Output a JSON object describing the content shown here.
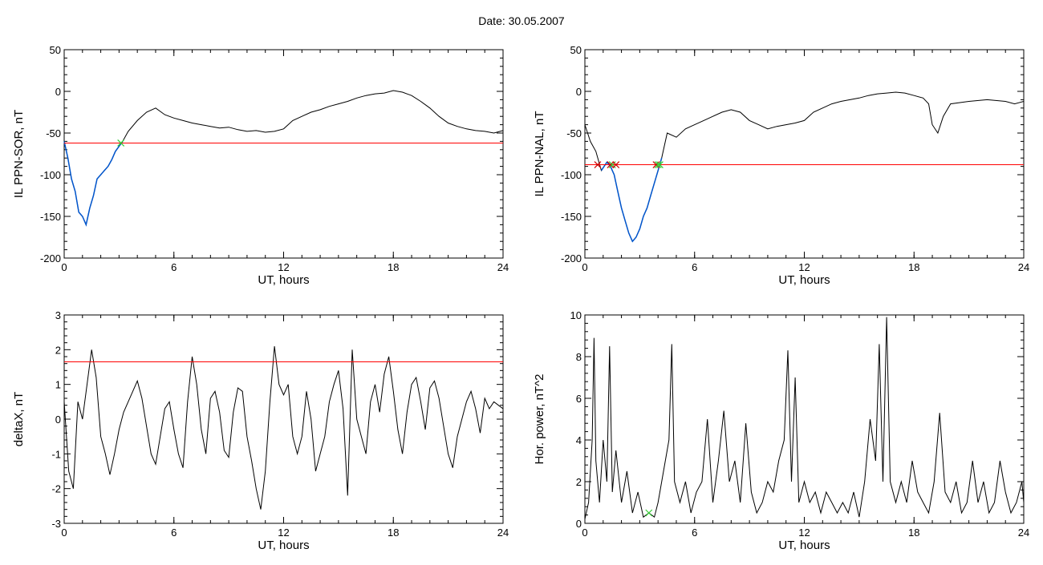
{
  "figure": {
    "title": "Date:  30.05.2007"
  },
  "colors": {
    "threshold": "#ff0000",
    "trace": "#000000",
    "highlight": "#0055cc",
    "marker_red": "#cc0000",
    "marker_green": "#33cc33"
  },
  "chart_data": [
    {
      "id": "sor",
      "type": "line",
      "xlabel": "UT, hours",
      "ylabel": "IL PPN-SOR, nT",
      "xlim": [
        0,
        24
      ],
      "ylim": [
        -200,
        50
      ],
      "xticks": [
        "0",
        "6",
        "12",
        "18",
        "24"
      ],
      "yticks": [
        "-200",
        "-150",
        "-100",
        "-50",
        "0",
        "50"
      ],
      "threshold": -62,
      "highlight_range": [
        0,
        3.2
      ],
      "markers": [
        {
          "x": 3.1,
          "y": -62,
          "color": "green"
        }
      ],
      "series": [
        {
          "x": [
            0,
            0.2,
            0.4,
            0.6,
            0.8,
            1.0,
            1.2,
            1.4,
            1.6,
            1.8,
            2.0,
            2.2,
            2.4,
            2.6,
            2.8,
            3.0,
            3.2,
            3.5,
            4.0,
            4.5,
            5.0,
            5.5,
            6.0,
            6.5,
            7.0,
            7.5,
            8.0,
            8.5,
            9.0,
            9.5,
            10.0,
            10.5,
            11.0,
            11.5,
            12.0,
            12.5,
            13.0,
            13.5,
            14.0,
            14.5,
            15.0,
            15.5,
            16.0,
            16.5,
            17.0,
            17.5,
            18.0,
            18.5,
            19.0,
            19.5,
            20.0,
            20.5,
            21.0,
            21.5,
            22.0,
            22.5,
            23.0,
            23.5,
            24.0
          ],
          "y": [
            -60,
            -80,
            -105,
            -120,
            -145,
            -150,
            -160,
            -140,
            -125,
            -105,
            -100,
            -95,
            -90,
            -82,
            -72,
            -66,
            -60,
            -48,
            -35,
            -25,
            -20,
            -28,
            -32,
            -35,
            -38,
            -40,
            -42,
            -44,
            -43,
            -46,
            -48,
            -47,
            -49,
            -48,
            -45,
            -35,
            -30,
            -25,
            -22,
            -18,
            -15,
            -12,
            -8,
            -5,
            -3,
            -2,
            1,
            -1,
            -5,
            -12,
            -20,
            -30,
            -38,
            -42,
            -45,
            -47,
            -48,
            -50,
            -47
          ]
        }
      ]
    },
    {
      "id": "nal",
      "type": "line",
      "xlabel": "UT, hours",
      "ylabel": "IL PPN-NAL, nT",
      "xlim": [
        0,
        24
      ],
      "ylim": [
        -200,
        50
      ],
      "xticks": [
        "0",
        "6",
        "12",
        "18",
        "24"
      ],
      "yticks": [
        "-200",
        "-150",
        "-100",
        "-50",
        "0",
        "50"
      ],
      "threshold": -88,
      "highlight_range": [
        0.7,
        4.2
      ],
      "markers": [
        {
          "x": 0.7,
          "y": -88,
          "color": "red"
        },
        {
          "x": 1.4,
          "y": -88,
          "color": "red"
        },
        {
          "x": 1.5,
          "y": -88,
          "color": "green"
        },
        {
          "x": 1.7,
          "y": -88,
          "color": "red"
        },
        {
          "x": 3.9,
          "y": -88,
          "color": "red"
        },
        {
          "x": 4.0,
          "y": -88,
          "color": "green"
        },
        {
          "x": 4.1,
          "y": -88,
          "color": "green"
        }
      ],
      "series": [
        {
          "x": [
            0,
            0.3,
            0.6,
            0.9,
            1.2,
            1.4,
            1.6,
            1.8,
            2.0,
            2.2,
            2.4,
            2.6,
            2.8,
            3.0,
            3.2,
            3.4,
            3.6,
            3.8,
            4.0,
            4.2,
            4.5,
            5.0,
            5.5,
            6.0,
            6.5,
            7.0,
            7.5,
            8.0,
            8.5,
            9.0,
            9.5,
            10.0,
            10.5,
            11.0,
            11.5,
            12.0,
            12.5,
            13.0,
            13.5,
            14.0,
            14.5,
            15.0,
            15.5,
            16.0,
            16.5,
            17.0,
            17.5,
            18.0,
            18.5,
            18.8,
            19.0,
            19.3,
            19.6,
            20.0,
            21.0,
            22.0,
            23.0,
            23.5,
            24.0
          ],
          "y": [
            -40,
            -60,
            -72,
            -95,
            -85,
            -90,
            -100,
            -120,
            -140,
            -155,
            -170,
            -180,
            -175,
            -165,
            -150,
            -140,
            -125,
            -110,
            -95,
            -80,
            -50,
            -55,
            -45,
            -40,
            -35,
            -30,
            -25,
            -22,
            -25,
            -35,
            -40,
            -45,
            -42,
            -40,
            -38,
            -35,
            -25,
            -20,
            -15,
            -12,
            -10,
            -8,
            -5,
            -3,
            -2,
            -1,
            -2,
            -5,
            -8,
            -15,
            -40,
            -50,
            -30,
            -15,
            -12,
            -10,
            -12,
            -15,
            -12
          ]
        }
      ]
    },
    {
      "id": "deltax",
      "type": "line",
      "xlabel": "UT, hours",
      "ylabel": "deltaX, nT",
      "xlim": [
        0,
        24
      ],
      "ylim": [
        -3,
        3
      ],
      "xticks": [
        "0",
        "6",
        "12",
        "18",
        "24"
      ],
      "yticks": [
        "-3",
        "-2",
        "-1",
        "0",
        "1",
        "2",
        "3"
      ],
      "threshold": 1.65,
      "series": [
        {
          "x": [
            0,
            0.25,
            0.5,
            0.75,
            1.0,
            1.25,
            1.5,
            1.75,
            2.0,
            2.25,
            2.5,
            2.75,
            3.0,
            3.25,
            3.5,
            3.75,
            4.0,
            4.25,
            4.5,
            4.75,
            5.0,
            5.25,
            5.5,
            5.75,
            6.0,
            6.25,
            6.5,
            6.75,
            7.0,
            7.25,
            7.5,
            7.75,
            8.0,
            8.25,
            8.5,
            8.75,
            9.0,
            9.25,
            9.5,
            9.75,
            10.0,
            10.25,
            10.5,
            10.75,
            11.0,
            11.25,
            11.5,
            11.75,
            12.0,
            12.25,
            12.5,
            12.75,
            13.0,
            13.25,
            13.5,
            13.75,
            14.0,
            14.25,
            14.5,
            14.75,
            15.0,
            15.25,
            15.5,
            15.75,
            16.0,
            16.25,
            16.5,
            16.75,
            17.0,
            17.25,
            17.5,
            17.75,
            18.0,
            18.25,
            18.5,
            18.75,
            19.0,
            19.25,
            19.5,
            19.75,
            20.0,
            20.25,
            20.5,
            20.75,
            21.0,
            21.25,
            21.5,
            21.75,
            22.0,
            22.25,
            22.5,
            22.75,
            23.0,
            23.25,
            23.5,
            23.75,
            24.0
          ],
          "y": [
            0.5,
            -1.5,
            -2.0,
            0.5,
            0.0,
            1.0,
            2.0,
            1.2,
            -0.5,
            -1.0,
            -1.6,
            -1.0,
            -0.3,
            0.2,
            0.5,
            0.8,
            1.1,
            0.6,
            -0.2,
            -1.0,
            -1.3,
            -0.5,
            0.3,
            0.5,
            -0.3,
            -1.0,
            -1.4,
            0.5,
            1.8,
            1.0,
            -0.3,
            -1.0,
            0.6,
            0.8,
            0.2,
            -0.9,
            -1.1,
            0.2,
            0.9,
            0.8,
            -0.5,
            -1.2,
            -2.0,
            -2.6,
            -1.5,
            0.5,
            2.1,
            1.0,
            0.7,
            1.0,
            -0.5,
            -1.0,
            -0.5,
            0.8,
            0.0,
            -1.5,
            -1.0,
            -0.5,
            0.5,
            1.0,
            1.4,
            0.3,
            -2.2,
            2.0,
            0.0,
            -0.5,
            -1.0,
            0.5,
            1.0,
            0.2,
            1.3,
            1.8,
            0.8,
            -0.3,
            -1.0,
            0.2,
            1.0,
            1.2,
            0.5,
            -0.3,
            0.9,
            1.1,
            0.6,
            -0.2,
            -1.0,
            -1.4,
            -0.5,
            0.0,
            0.5,
            0.8,
            0.3,
            -0.4,
            0.6,
            0.3,
            0.5,
            0.4,
            0.3
          ]
        }
      ]
    },
    {
      "id": "power",
      "type": "line",
      "xlabel": "UT, hours",
      "ylabel": "Hor. power, nT^2",
      "xlim": [
        0,
        24
      ],
      "ylim": [
        0,
        10
      ],
      "xticks": [
        "0",
        "6",
        "12",
        "18",
        "24"
      ],
      "yticks": [
        "0",
        "2",
        "4",
        "6",
        "8",
        "10"
      ],
      "markers": [
        {
          "x": 3.5,
          "y": 0.5,
          "color": "green"
        }
      ],
      "series": [
        {
          "x": [
            0,
            0.2,
            0.4,
            0.5,
            0.6,
            0.8,
            1.0,
            1.2,
            1.35,
            1.5,
            1.7,
            2.0,
            2.3,
            2.6,
            2.9,
            3.2,
            3.5,
            3.8,
            4.0,
            4.3,
            4.6,
            4.75,
            4.9,
            5.2,
            5.5,
            5.8,
            6.1,
            6.4,
            6.7,
            7.0,
            7.3,
            7.6,
            7.9,
            8.2,
            8.5,
            8.8,
            9.1,
            9.4,
            9.7,
            10.0,
            10.3,
            10.6,
            10.9,
            11.1,
            11.3,
            11.5,
            11.7,
            12.0,
            12.3,
            12.6,
            12.9,
            13.2,
            13.5,
            13.8,
            14.1,
            14.4,
            14.7,
            15.0,
            15.3,
            15.6,
            15.9,
            16.1,
            16.3,
            16.5,
            16.7,
            17.0,
            17.3,
            17.6,
            17.9,
            18.2,
            18.5,
            18.8,
            19.1,
            19.4,
            19.7,
            20.0,
            20.3,
            20.6,
            20.9,
            21.2,
            21.5,
            21.8,
            22.1,
            22.4,
            22.7,
            23.0,
            23.3,
            23.6,
            23.9,
            24.0
          ],
          "y": [
            0.2,
            1.0,
            4.0,
            8.9,
            3.0,
            1.0,
            4.0,
            2.0,
            8.5,
            1.5,
            3.5,
            1.0,
            2.5,
            0.5,
            1.5,
            0.3,
            0.5,
            0.3,
            1.0,
            2.5,
            4.0,
            8.6,
            2.0,
            1.0,
            2.0,
            0.5,
            1.5,
            2.0,
            5.0,
            1.0,
            3.0,
            5.4,
            2.0,
            3.0,
            1.0,
            4.8,
            1.5,
            0.5,
            1.0,
            2.0,
            1.5,
            3.0,
            4.0,
            8.3,
            2.0,
            7.0,
            1.0,
            2.0,
            1.0,
            1.5,
            0.5,
            1.5,
            1.0,
            0.5,
            1.0,
            0.5,
            1.5,
            0.3,
            2.0,
            5.0,
            3.0,
            8.6,
            2.0,
            9.9,
            2.0,
            1.0,
            2.0,
            1.0,
            3.0,
            1.5,
            1.0,
            0.5,
            2.0,
            5.3,
            1.5,
            1.0,
            2.0,
            0.5,
            1.0,
            3.0,
            1.0,
            2.0,
            0.5,
            1.0,
            3.0,
            1.5,
            0.5,
            1.0,
            2.0,
            1.0
          ]
        }
      ]
    }
  ]
}
